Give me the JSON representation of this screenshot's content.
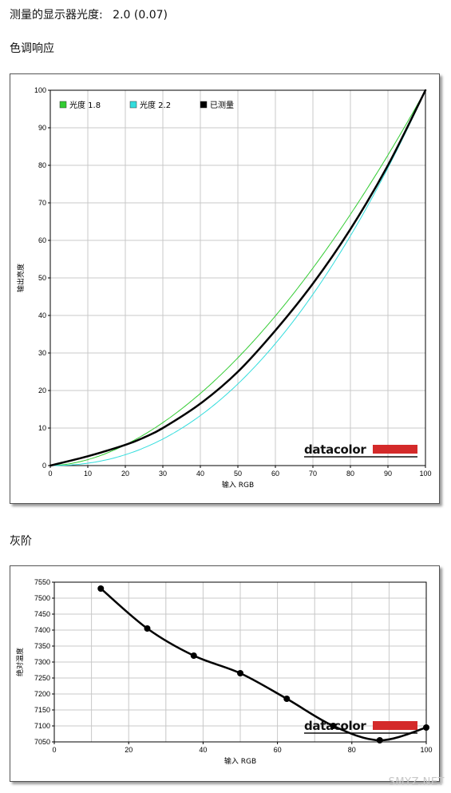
{
  "header": {
    "measured_gamma_label": "测量的显示器光度:",
    "measured_gamma_value": "2.0 (0.07)",
    "section1_title": "色调响应",
    "section2_title": "灰阶"
  },
  "watermark": {
    "brand": "datacolor",
    "corner": "SMYZ.NET"
  },
  "colors": {
    "gamma18": "#33cc33",
    "gamma22": "#33dddd",
    "measured": "#000000",
    "brand_red": "#d42a2a"
  },
  "chart_data": [
    {
      "type": "line",
      "title": "",
      "xlabel": "输入 RGB",
      "ylabel": "输出亮度",
      "xlim": [
        0,
        100
      ],
      "ylim": [
        0,
        100
      ],
      "xticks": [
        "0",
        "10",
        "20",
        "30",
        "40",
        "50",
        "60",
        "70",
        "80",
        "90",
        "100"
      ],
      "yticks": [
        "0",
        "10",
        "20",
        "30",
        "40",
        "50",
        "60",
        "70",
        "80",
        "90",
        "100"
      ],
      "grid": true,
      "legend_position": "top-left",
      "series": [
        {
          "name": "光度 1.8",
          "color": "#33cc33",
          "width": 1,
          "gamma": 1.8,
          "x": [
            0,
            10,
            20,
            30,
            40,
            50,
            60,
            70,
            80,
            90,
            100
          ],
          "y": [
            0,
            1.6,
            5.5,
            11.5,
            19.2,
            28.7,
            39.9,
            52.6,
            66.9,
            82.7,
            100
          ]
        },
        {
          "name": "光度 2.2",
          "color": "#33dddd",
          "width": 1,
          "gamma": 2.2,
          "x": [
            0,
            10,
            20,
            30,
            40,
            50,
            60,
            70,
            80,
            90,
            100
          ],
          "y": [
            0,
            0.6,
            2.9,
            7.1,
            13.3,
            21.8,
            32.5,
            45.6,
            61.2,
            79.3,
            100
          ]
        },
        {
          "name": "已测量",
          "color": "#000000",
          "width": 2.5,
          "x": [
            0,
            10,
            20,
            25,
            30,
            40,
            50,
            60,
            70,
            80,
            90,
            100
          ],
          "y": [
            0,
            2.5,
            5.5,
            7.5,
            10,
            16.5,
            25,
            36,
            48.5,
            63,
            80,
            100
          ]
        }
      ]
    },
    {
      "type": "line",
      "title": "",
      "xlabel": "输入 RGB",
      "ylabel": "绝对温度",
      "xlim": [
        0,
        100
      ],
      "ylim": [
        7050,
        7550
      ],
      "xticks": [
        "0",
        "20",
        "40",
        "60",
        "80",
        "100"
      ],
      "yticks": [
        "7550",
        "7500",
        "7450",
        "7400",
        "7350",
        "7300",
        "7250",
        "7200",
        "7150",
        "7100",
        "7050"
      ],
      "grid": true,
      "series": [
        {
          "name": "",
          "color": "#000000",
          "width": 2.5,
          "markers": true,
          "x": [
            12.5,
            25,
            37.5,
            50,
            62.5,
            75,
            87.5,
            100
          ],
          "y": [
            7530,
            7405,
            7320,
            7265,
            7185,
            7100,
            7055,
            7095
          ]
        }
      ]
    }
  ]
}
